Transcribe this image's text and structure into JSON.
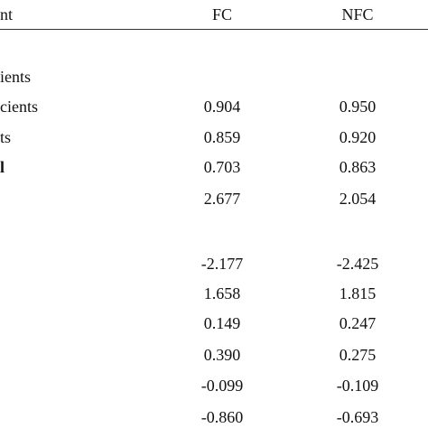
{
  "table": {
    "header": [
      "nt",
      "FC",
      "NFC"
    ],
    "rows": [
      [
        "ients",
        null,
        null
      ],
      [
        "cients",
        "0.904",
        "0.950"
      ],
      [
        "ts",
        "0.859",
        "0.920"
      ],
      [
        "l",
        "0.703",
        "0.863"
      ],
      [
        null,
        "2.677",
        "2.054"
      ],
      [
        null,
        "-2.177",
        "-2.425"
      ],
      [
        null,
        "1.658",
        "1.815"
      ],
      [
        null,
        "0.149",
        "0.247"
      ],
      [
        null,
        "0.390",
        "0.275"
      ],
      [
        null,
        "-0.099",
        "-0.109"
      ],
      [
        null,
        "-0.860",
        "-0.693"
      ]
    ]
  }
}
